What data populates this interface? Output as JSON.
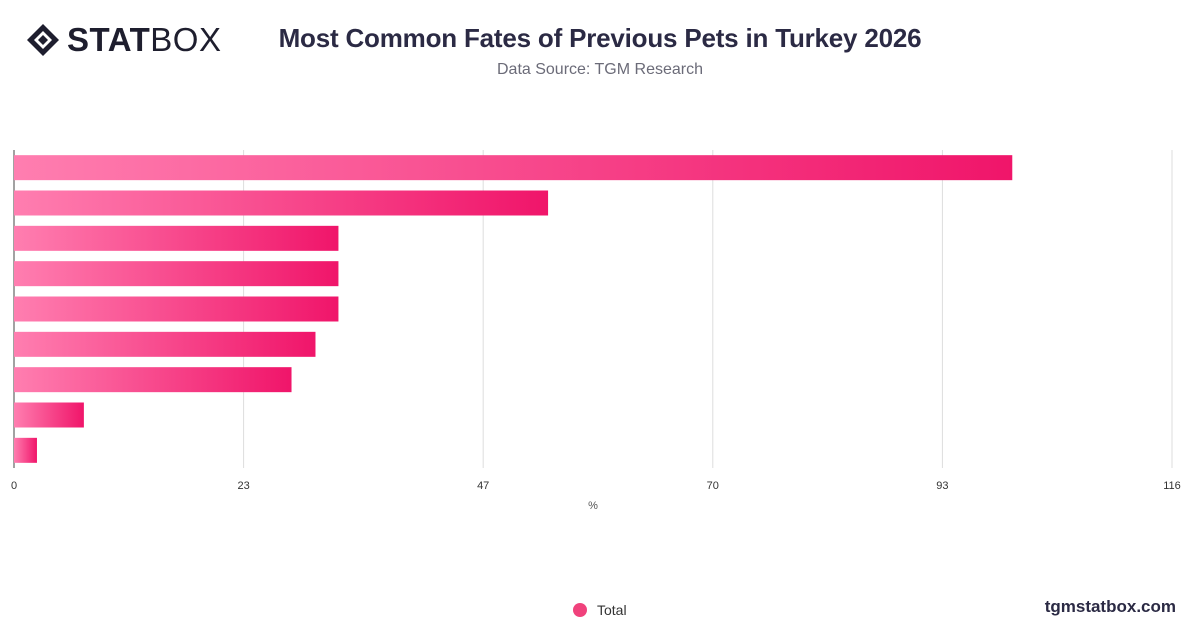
{
  "brand": {
    "name_bold": "STAT",
    "name_light": "BOX",
    "logo_icon": "diamond-logo-icon",
    "footer": "tgmstatbox.com"
  },
  "header": {
    "title": "Most Common Fates of Previous Pets in Turkey 2026",
    "subtitle": "Data Source: TGM Research"
  },
  "colors": {
    "bar_start": "#ff7eb0",
    "bar_end": "#f0156a",
    "legend": "#f0427c",
    "grid": "#dddddd",
    "axis": "#444444"
  },
  "chart_data": {
    "type": "bar",
    "orientation": "horizontal",
    "title": "Most Common Fates of Previous Pets in Turkey 2026",
    "subtitle": "Data Source: TGM Research",
    "xlabel": "%",
    "ylabel": "",
    "xlim": [
      0,
      116
    ],
    "xticks": [
      0,
      23,
      47,
      70,
      93,
      116
    ],
    "categories": [
      "",
      "",
      "",
      "",
      "",
      "",
      "",
      "",
      ""
    ],
    "series": [
      {
        "name": "Total",
        "values": [
          100,
          53.5,
          32.5,
          32.5,
          32.5,
          30.2,
          27.8,
          7,
          2.3
        ]
      }
    ],
    "legend": "bottom-center",
    "grid": true
  }
}
